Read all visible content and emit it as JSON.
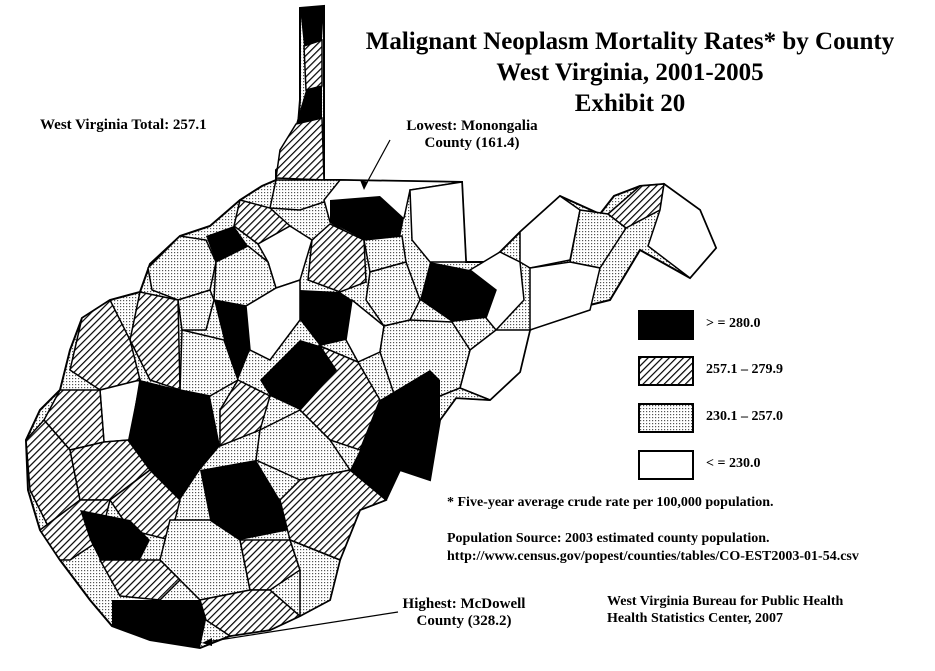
{
  "title": {
    "line1": "Malignant Neoplasm Mortality Rates* by County",
    "line2": "West Virginia, 2001-2005",
    "line3": "Exhibit 20"
  },
  "state_total": "West Virginia Total:  257.1",
  "lowest": {
    "line1": "Lowest:  Monongalia",
    "line2": "County (161.4)"
  },
  "highest": {
    "line1": "Highest:  McDowell",
    "line2": "County (328.2)"
  },
  "legend": [
    {
      "label": "> = 280.0",
      "class": "high",
      "color": "#000000"
    },
    {
      "label": "257.1 – 279.9",
      "class": "upper-mid",
      "color": "#6b6b6b"
    },
    {
      "label": "230.1 – 257.0",
      "class": "lower-mid",
      "color": "#d8d8d8"
    },
    {
      "label": "< = 230.0",
      "class": "low",
      "color": "#ffffff"
    }
  ],
  "footnote": "* Five-year average crude rate per 100,000 population.",
  "source": {
    "line1": "Population Source:  2003 estimated county population.",
    "line2": "http://www.census.gov/popest/counties/tables/CO-EST2003-01-54.csv"
  },
  "credit": {
    "line1": "West Virginia Bureau for Public Health",
    "line2": "Health Statistics Center, 2007"
  }
}
